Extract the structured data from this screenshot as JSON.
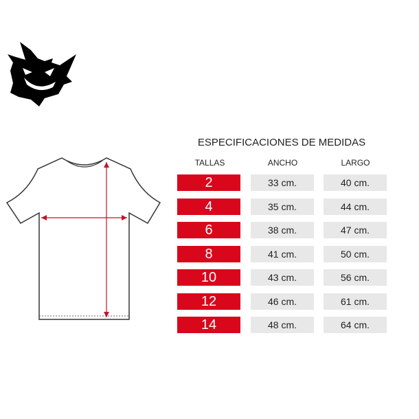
{
  "title": "ESPECIFICACIONES DE MEDIDAS",
  "headers": {
    "size": "TALLAS",
    "width": "ANCHO",
    "length": "LARGO"
  },
  "rows": [
    {
      "size": "2",
      "width": "33 cm.",
      "length": "40 cm."
    },
    {
      "size": "4",
      "width": "35 cm.",
      "length": "44 cm."
    },
    {
      "size": "6",
      "width": "38 cm.",
      "length": "47 cm."
    },
    {
      "size": "8",
      "width": "41 cm.",
      "length": "50 cm."
    },
    {
      "size": "10",
      "width": "43 cm.",
      "length": "56 cm."
    },
    {
      "size": "12",
      "width": "46 cm.",
      "length": "61 cm."
    },
    {
      "size": "14",
      "width": "48 cm.",
      "length": "64 cm."
    }
  ],
  "colors": {
    "accent": "#d9071c",
    "cell": "#e8e8e8"
  },
  "icons": {
    "logo": "ghost-logo-icon",
    "shirt": "tshirt-diagram-icon"
  }
}
